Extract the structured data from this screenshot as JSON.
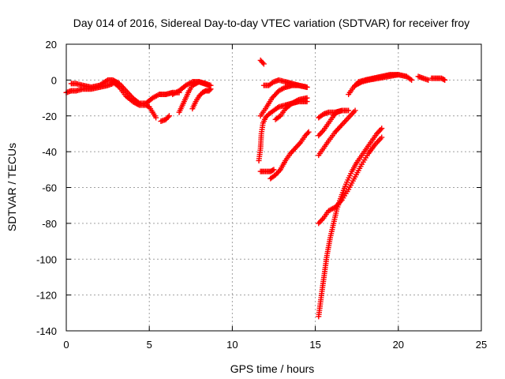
{
  "chart_data": {
    "type": "scatter",
    "title": "Day 014 of 2016, Sidereal Day-to-day VTEC variation (SDTVAR) for receiver froy",
    "xlabel": "GPS time / hours",
    "ylabel": "SDTVAR / TECUs",
    "xlim": [
      0,
      25
    ],
    "ylim": [
      -140,
      20
    ],
    "xticks": [
      0,
      5,
      10,
      15,
      20,
      25
    ],
    "yticks": [
      20,
      0,
      -20,
      -40,
      -60,
      -80,
      -100,
      -120,
      -140
    ],
    "grid": true,
    "marker": "+",
    "color": "#ff0000",
    "series": [
      {
        "points": [
          [
            0.0,
            -7
          ],
          [
            0.3,
            -6
          ],
          [
            0.6,
            -6
          ],
          [
            1.0,
            -5
          ],
          [
            1.5,
            -5
          ],
          [
            2.0,
            -4
          ],
          [
            2.5,
            -3
          ],
          [
            2.8,
            -2
          ]
        ]
      },
      {
        "points": [
          [
            0.3,
            -2
          ],
          [
            0.6,
            -2
          ],
          [
            1.0,
            -3
          ],
          [
            1.5,
            -4
          ],
          [
            2.0,
            -3
          ],
          [
            2.5,
            0
          ],
          [
            2.8,
            0
          ],
          [
            3.2,
            -2
          ],
          [
            3.6,
            -6
          ],
          [
            4.0,
            -10
          ],
          [
            4.4,
            -13
          ],
          [
            4.8,
            -13
          ],
          [
            5.2,
            -10
          ],
          [
            5.6,
            -8
          ],
          [
            6.0,
            -8
          ],
          [
            6.4,
            -7
          ],
          [
            6.8,
            -7
          ]
        ]
      },
      {
        "points": [
          [
            2.8,
            -1
          ],
          [
            3.2,
            -4
          ],
          [
            3.6,
            -9
          ],
          [
            4.0,
            -12
          ],
          [
            4.4,
            -14
          ],
          [
            4.8,
            -14
          ],
          [
            5.0,
            -15
          ],
          [
            5.2,
            -18
          ],
          [
            5.4,
            -21
          ]
        ]
      },
      {
        "points": [
          [
            5.7,
            -23
          ],
          [
            6.0,
            -22
          ],
          [
            6.2,
            -20
          ]
        ]
      },
      {
        "points": [
          [
            6.4,
            -8
          ],
          [
            6.8,
            -6
          ],
          [
            7.2,
            -3
          ],
          [
            7.6,
            -1
          ],
          [
            8.0,
            -1
          ],
          [
            8.4,
            -2
          ],
          [
            8.7,
            -3
          ]
        ]
      },
      {
        "points": [
          [
            6.8,
            -18
          ],
          [
            7.0,
            -14
          ],
          [
            7.2,
            -10
          ],
          [
            7.4,
            -6
          ],
          [
            7.6,
            -3
          ],
          [
            7.8,
            -2
          ],
          [
            8.0,
            -1
          ],
          [
            8.3,
            -2
          ],
          [
            8.6,
            -3
          ]
        ]
      },
      {
        "points": [
          [
            7.6,
            -16
          ],
          [
            7.8,
            -12
          ],
          [
            8.0,
            -9
          ],
          [
            8.2,
            -7
          ],
          [
            8.4,
            -6
          ],
          [
            8.6,
            -6
          ],
          [
            8.7,
            -5
          ]
        ]
      },
      {
        "points": [
          [
            11.7,
            11
          ],
          [
            11.9,
            9
          ]
        ]
      },
      {
        "points": [
          [
            11.7,
            -20
          ],
          [
            12.0,
            -16
          ],
          [
            12.4,
            -10
          ],
          [
            12.8,
            -6
          ],
          [
            13.2,
            -4
          ],
          [
            13.6,
            -3
          ],
          [
            14.0,
            -3
          ],
          [
            14.5,
            -4
          ]
        ]
      },
      {
        "points": [
          [
            11.9,
            -3
          ],
          [
            12.2,
            -3
          ],
          [
            12.5,
            -1
          ],
          [
            12.8,
            0
          ],
          [
            13.2,
            -1
          ],
          [
            13.6,
            -2
          ],
          [
            14.0,
            -3
          ],
          [
            14.5,
            -4
          ]
        ]
      },
      {
        "points": [
          [
            11.7,
            -51
          ],
          [
            12.0,
            -51
          ],
          [
            12.3,
            -51
          ],
          [
            12.5,
            -50
          ]
        ]
      },
      {
        "points": [
          [
            11.6,
            -45
          ],
          [
            11.7,
            -38
          ],
          [
            11.75,
            -30
          ],
          [
            11.85,
            -24
          ],
          [
            12.0,
            -21
          ],
          [
            12.2,
            -19
          ],
          [
            12.5,
            -17
          ],
          [
            12.8,
            -15
          ],
          [
            13.2,
            -14
          ],
          [
            13.6,
            -13
          ],
          [
            14.0,
            -12
          ],
          [
            14.5,
            -12
          ]
        ]
      },
      {
        "points": [
          [
            12.3,
            -55
          ],
          [
            12.6,
            -53
          ],
          [
            12.9,
            -50
          ],
          [
            13.2,
            -45
          ],
          [
            13.5,
            -41
          ],
          [
            13.8,
            -38
          ],
          [
            14.1,
            -35
          ],
          [
            14.4,
            -31
          ],
          [
            14.6,
            -29
          ]
        ]
      },
      {
        "points": [
          [
            12.6,
            -22
          ],
          [
            12.9,
            -20
          ],
          [
            13.2,
            -16
          ],
          [
            13.6,
            -13
          ],
          [
            14.0,
            -11
          ],
          [
            14.5,
            -10
          ]
        ]
      },
      {
        "points": [
          [
            15.2,
            -21
          ],
          [
            15.5,
            -19
          ],
          [
            15.8,
            -18
          ],
          [
            16.2,
            -18
          ],
          [
            16.6,
            -17
          ],
          [
            17.0,
            -17
          ]
        ]
      },
      {
        "points": [
          [
            15.2,
            -31
          ],
          [
            15.5,
            -28
          ],
          [
            15.8,
            -24
          ],
          [
            16.1,
            -20
          ],
          [
            16.3,
            -18
          ],
          [
            16.6,
            -17
          ]
        ]
      },
      {
        "points": [
          [
            15.2,
            -42
          ],
          [
            15.5,
            -38
          ],
          [
            15.8,
            -34
          ],
          [
            16.2,
            -29
          ],
          [
            16.6,
            -25
          ],
          [
            17.0,
            -21
          ],
          [
            17.4,
            -17
          ]
        ]
      },
      {
        "points": [
          [
            15.2,
            -80
          ],
          [
            15.5,
            -77
          ],
          [
            15.8,
            -73
          ],
          [
            16.2,
            -71
          ],
          [
            16.6,
            -67
          ],
          [
            17.0,
            -61
          ],
          [
            17.4,
            -54
          ],
          [
            17.8,
            -47
          ],
          [
            18.2,
            -41
          ],
          [
            18.6,
            -36
          ],
          [
            19.0,
            -32
          ]
        ]
      },
      {
        "points": [
          [
            15.2,
            -132
          ],
          [
            15.3,
            -125
          ],
          [
            15.4,
            -118
          ],
          [
            15.55,
            -108
          ],
          [
            15.7,
            -98
          ],
          [
            15.9,
            -88
          ],
          [
            16.1,
            -80
          ],
          [
            16.3,
            -72
          ],
          [
            16.6,
            -64
          ],
          [
            16.9,
            -57
          ],
          [
            17.2,
            -51
          ],
          [
            17.5,
            -46
          ],
          [
            17.8,
            -42
          ],
          [
            18.1,
            -38
          ],
          [
            18.4,
            -34
          ],
          [
            18.7,
            -30
          ],
          [
            19.0,
            -27
          ]
        ]
      },
      {
        "points": [
          [
            17.0,
            -8
          ],
          [
            17.3,
            -4
          ],
          [
            17.6,
            -1
          ],
          [
            18.0,
            0
          ],
          [
            18.5,
            1
          ],
          [
            19.0,
            2
          ],
          [
            19.5,
            3
          ],
          [
            20.0,
            3
          ],
          [
            20.5,
            2
          ],
          [
            20.8,
            0
          ]
        ]
      },
      {
        "points": [
          [
            17.4,
            -3
          ],
          [
            17.8,
            -1
          ],
          [
            18.2,
            0
          ],
          [
            18.8,
            1
          ],
          [
            19.4,
            2
          ],
          [
            20.0,
            3
          ]
        ]
      },
      {
        "points": [
          [
            21.2,
            2
          ],
          [
            21.5,
            1
          ],
          [
            21.8,
            0
          ]
        ]
      },
      {
        "points": [
          [
            22.0,
            1
          ],
          [
            22.3,
            1
          ],
          [
            22.6,
            1
          ],
          [
            22.8,
            0
          ]
        ]
      }
    ]
  }
}
